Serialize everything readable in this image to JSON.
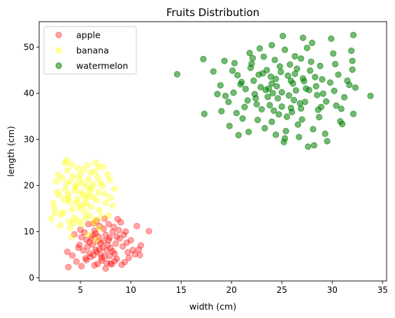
{
  "chart_data": {
    "type": "scatter",
    "title": "Fruits Distribution",
    "xlabel": "width (cm)",
    "ylabel": "length (cm)",
    "xlim": [
      0.9,
      35.4
    ],
    "ylim": [
      -0.7,
      55.5
    ],
    "xticks": [
      5,
      10,
      15,
      20,
      25,
      30,
      35
    ],
    "yticks": [
      0,
      10,
      20,
      30,
      40,
      50
    ],
    "grid": false,
    "legend_position": "upper-left",
    "series": [
      {
        "name": "apple",
        "color": "#ff0000",
        "alpha": 0.35,
        "points": [
          [
            7.0,
            7.5
          ],
          [
            6.5,
            6.0
          ],
          [
            7.8,
            8.2
          ],
          [
            6.2,
            9.1
          ],
          [
            8.4,
            5.2
          ],
          [
            5.9,
            7.7
          ],
          [
            7.1,
            4.3
          ],
          [
            9.2,
            6.8
          ],
          [
            8.8,
            10.3
          ],
          [
            6.9,
            11.2
          ],
          [
            5.4,
            9.8
          ],
          [
            4.8,
            6.5
          ],
          [
            7.6,
            3.2
          ],
          [
            8.1,
            2.9
          ],
          [
            6.0,
            4.5
          ],
          [
            10.2,
            6.0
          ],
          [
            10.6,
            11.2
          ],
          [
            11.8,
            10.1
          ],
          [
            9.0,
            12.0
          ],
          [
            8.7,
            12.7
          ],
          [
            3.8,
            2.3
          ],
          [
            5.1,
            2.5
          ],
          [
            7.5,
            2.0
          ],
          [
            9.1,
            2.8
          ],
          [
            4.2,
            4.8
          ],
          [
            3.7,
            5.6
          ],
          [
            6.7,
            3.0
          ],
          [
            7.9,
            4.7
          ],
          [
            8.6,
            4.1
          ],
          [
            10.4,
            5.1
          ],
          [
            10.8,
            6.1
          ],
          [
            9.6,
            7.6
          ],
          [
            9.3,
            9.3
          ],
          [
            8.2,
            9.9
          ],
          [
            7.3,
            10.6
          ],
          [
            6.4,
            10.2
          ],
          [
            5.8,
            11.6
          ],
          [
            6.6,
            12.3
          ],
          [
            7.4,
            12.8
          ],
          [
            5.6,
            8.2
          ],
          [
            6.1,
            8.6
          ],
          [
            6.8,
            8.9
          ],
          [
            7.2,
            6.6
          ],
          [
            7.7,
            7.1
          ],
          [
            8.0,
            6.4
          ],
          [
            8.5,
            7.4
          ],
          [
            5.3,
            5.9
          ],
          [
            5.9,
            5.3
          ],
          [
            6.3,
            4.9
          ],
          [
            6.6,
            5.6
          ],
          [
            7.0,
            5.1
          ],
          [
            7.3,
            8.0
          ],
          [
            8.9,
            8.5
          ],
          [
            9.7,
            5.5
          ],
          [
            4.9,
            7.1
          ],
          [
            5.1,
            8.8
          ],
          [
            6.2,
            7.2
          ],
          [
            6.9,
            6.3
          ],
          [
            7.5,
            9.3
          ],
          [
            8.3,
            11.0
          ],
          [
            9.5,
            10.0
          ],
          [
            10.0,
            8.1
          ],
          [
            5.6,
            3.8
          ],
          [
            4.6,
            3.5
          ],
          [
            6.4,
            2.7
          ],
          [
            8.4,
            3.6
          ],
          [
            9.8,
            4.3
          ],
          [
            10.9,
            4.9
          ],
          [
            11.0,
            7.0
          ],
          [
            4.4,
            9.4
          ],
          [
            5.0,
            10.4
          ],
          [
            6.3,
            11.8
          ],
          [
            7.8,
            11.6
          ],
          [
            8.6,
            8.9
          ],
          [
            7.6,
            5.9
          ],
          [
            6.7,
            7.9
          ],
          [
            5.7,
            6.7
          ],
          [
            8.0,
            3.1
          ],
          [
            7.1,
            3.7
          ],
          [
            9.4,
            3.4
          ],
          [
            8.2,
            5.7
          ],
          [
            6.5,
            9.6
          ],
          [
            7.4,
            4.6
          ],
          [
            5.5,
            4.2
          ],
          [
            7.9,
            8.7
          ]
        ]
      },
      {
        "name": "banana",
        "color": "#ffff00",
        "alpha": 0.35,
        "points": [
          [
            5.0,
            18.5
          ],
          [
            4.6,
            20.1
          ],
          [
            5.5,
            17.2
          ],
          [
            3.9,
            16.4
          ],
          [
            6.1,
            19.4
          ],
          [
            4.3,
            22.0
          ],
          [
            5.8,
            21.3
          ],
          [
            3.5,
            19.1
          ],
          [
            6.6,
            16.8
          ],
          [
            4.9,
            15.2
          ],
          [
            2.9,
            17.9
          ],
          [
            3.2,
            21.6
          ],
          [
            5.3,
            23.5
          ],
          [
            4.1,
            24.6
          ],
          [
            6.4,
            23.0
          ],
          [
            7.0,
            20.6
          ],
          [
            7.4,
            18.1
          ],
          [
            6.9,
            14.6
          ],
          [
            5.9,
            13.4
          ],
          [
            4.4,
            13.0
          ],
          [
            3.3,
            14.2
          ],
          [
            2.4,
            15.1
          ],
          [
            2.1,
            12.8
          ],
          [
            3.0,
            11.3
          ],
          [
            4.0,
            10.8
          ],
          [
            5.1,
            11.6
          ],
          [
            6.3,
            11.9
          ],
          [
            7.8,
            13.5
          ],
          [
            8.2,
            15.6
          ],
          [
            7.7,
            22.4
          ],
          [
            6.8,
            24.1
          ],
          [
            3.6,
            25.5
          ],
          [
            2.6,
            20.9
          ],
          [
            3.8,
            18.0
          ],
          [
            4.7,
            17.0
          ],
          [
            5.6,
            16.0
          ],
          [
            6.2,
            17.5
          ],
          [
            5.2,
            20.5
          ],
          [
            4.5,
            19.7
          ],
          [
            3.4,
            16.9
          ],
          [
            6.7,
            21.7
          ],
          [
            7.2,
            19.9
          ],
          [
            5.4,
            14.3
          ],
          [
            4.2,
            14.8
          ],
          [
            3.7,
            23.3
          ],
          [
            2.7,
            18.6
          ],
          [
            8.0,
            17.4
          ],
          [
            5.7,
            24.4
          ],
          [
            4.8,
            12.4
          ],
          [
            6.5,
            12.6
          ],
          [
            3.1,
            13.7
          ],
          [
            7.5,
            16.3
          ],
          [
            2.3,
            16.2
          ],
          [
            4.0,
            21.0
          ],
          [
            5.0,
            22.5
          ],
          [
            6.0,
            22.8
          ],
          [
            4.4,
            18.9
          ],
          [
            5.3,
            18.0
          ],
          [
            5.9,
            18.8
          ],
          [
            4.6,
            16.2
          ],
          [
            3.6,
            20.3
          ],
          [
            6.8,
            18.5
          ],
          [
            7.9,
            21.2
          ],
          [
            2.8,
            22.3
          ],
          [
            5.6,
            19.9
          ],
          [
            4.9,
            21.4
          ],
          [
            3.9,
            12.2
          ],
          [
            6.1,
            15.3
          ],
          [
            7.1,
            13.1
          ],
          [
            5.5,
            12.9
          ],
          [
            4.3,
            11.9
          ],
          [
            3.5,
            24.8
          ],
          [
            6.5,
            25.0
          ],
          [
            8.4,
            19.3
          ],
          [
            2.5,
            14.0
          ],
          [
            3.8,
            17.3
          ],
          [
            5.2,
            15.8
          ],
          [
            4.7,
            23.8
          ],
          [
            5.8,
            17.7
          ],
          [
            6.3,
            20.2
          ],
          [
            7.3,
            24.0
          ],
          [
            4.1,
            8.9
          ],
          [
            6.6,
            8.2
          ],
          [
            6.9,
            10.7
          ],
          [
            5.8,
            9.3
          ]
        ]
      },
      {
        "name": "watermelon",
        "color": "#008000",
        "alpha": 0.55,
        "points": [
          [
            25.0,
            40.2
          ],
          [
            24.0,
            42.1
          ],
          [
            26.2,
            38.5
          ],
          [
            23.1,
            44.3
          ],
          [
            27.4,
            41.0
          ],
          [
            22.5,
            37.6
          ],
          [
            25.8,
            46.2
          ],
          [
            28.3,
            43.5
          ],
          [
            21.4,
            40.9
          ],
          [
            24.7,
            35.4
          ],
          [
            26.9,
            36.7
          ],
          [
            23.6,
            39.2
          ],
          [
            29.1,
            39.9
          ],
          [
            20.6,
            43.9
          ],
          [
            27.9,
            46.8
          ],
          [
            22.1,
            47.6
          ],
          [
            25.3,
            49.4
          ],
          [
            24.4,
            31.0
          ],
          [
            26.6,
            33.2
          ],
          [
            28.7,
            34.8
          ],
          [
            30.4,
            37.3
          ],
          [
            31.7,
            41.8
          ],
          [
            19.7,
            38.1
          ],
          [
            21.1,
            34.5
          ],
          [
            23.3,
            32.4
          ],
          [
            25.2,
            29.4
          ],
          [
            27.6,
            28.4
          ],
          [
            29.5,
            29.6
          ],
          [
            31.0,
            33.3
          ],
          [
            32.1,
            35.5
          ],
          [
            33.8,
            39.4
          ],
          [
            32.0,
            45.1
          ],
          [
            30.1,
            48.6
          ],
          [
            28.0,
            50.9
          ],
          [
            25.1,
            52.4
          ],
          [
            22.8,
            49.7
          ],
          [
            20.3,
            46.5
          ],
          [
            18.9,
            41.7
          ],
          [
            17.3,
            35.5
          ],
          [
            19.0,
            36.1
          ],
          [
            14.6,
            44.1
          ],
          [
            17.2,
            47.4
          ],
          [
            26.4,
            40.6
          ],
          [
            24.1,
            40.0
          ],
          [
            27.1,
            43.2
          ],
          [
            23.8,
            37.4
          ],
          [
            25.6,
            43.8
          ],
          [
            22.9,
            41.3
          ],
          [
            28.5,
            39.6
          ],
          [
            24.6,
            38.9
          ],
          [
            26.0,
            35.9
          ],
          [
            21.9,
            45.5
          ],
          [
            27.8,
            44.9
          ],
          [
            23.0,
            36.5
          ],
          [
            25.9,
            42.7
          ],
          [
            29.8,
            42.3
          ],
          [
            20.9,
            41.9
          ],
          [
            24.9,
            44.6
          ],
          [
            26.8,
            37.8
          ],
          [
            22.3,
            39.8
          ],
          [
            28.8,
            45.9
          ],
          [
            30.6,
            44.0
          ],
          [
            31.2,
            39.1
          ],
          [
            21.6,
            38.4
          ],
          [
            19.4,
            39.4
          ],
          [
            20.1,
            44.9
          ],
          [
            18.2,
            44.7
          ],
          [
            32.0,
            47.0
          ],
          [
            31.9,
            49.2
          ],
          [
            29.9,
            51.8
          ],
          [
            27.5,
            49.8
          ],
          [
            26.3,
            48.0
          ],
          [
            24.3,
            47.2
          ],
          [
            22.0,
            46.4
          ],
          [
            23.5,
            45.0
          ],
          [
            28.1,
            32.2
          ],
          [
            26.7,
            30.5
          ],
          [
            24.0,
            33.8
          ],
          [
            22.6,
            34.2
          ],
          [
            20.5,
            35.7
          ],
          [
            19.8,
            32.9
          ],
          [
            21.7,
            31.6
          ],
          [
            25.4,
            31.8
          ],
          [
            29.3,
            31.2
          ],
          [
            30.9,
            36.6
          ],
          [
            32.3,
            41.2
          ],
          [
            27.3,
            38.1
          ],
          [
            25.7,
            39.5
          ],
          [
            23.9,
            43.6
          ],
          [
            22.2,
            42.7
          ],
          [
            24.5,
            41.5
          ],
          [
            26.1,
            42.1
          ],
          [
            28.4,
            41.5
          ],
          [
            25.0,
            37.1
          ],
          [
            27.0,
            34.3
          ],
          [
            23.4,
            40.7
          ],
          [
            21.3,
            37.0
          ],
          [
            26.5,
            45.3
          ],
          [
            28.9,
            37.0
          ],
          [
            30.2,
            40.5
          ],
          [
            24.2,
            36.2
          ],
          [
            22.7,
            44.0
          ],
          [
            25.5,
            34.9
          ],
          [
            27.2,
            42.6
          ],
          [
            29.0,
            43.0
          ],
          [
            20.2,
            40.1
          ],
          [
            18.6,
            39.8
          ],
          [
            31.5,
            42.7
          ],
          [
            26.9,
            47.5
          ],
          [
            23.2,
            47.9
          ],
          [
            24.8,
            45.8
          ],
          [
            21.0,
            42.4
          ],
          [
            22.4,
            38.9
          ],
          [
            28.6,
            36.4
          ],
          [
            25.9,
            36.8
          ],
          [
            27.7,
            40.7
          ],
          [
            24.4,
            43.1
          ],
          [
            26.3,
            44.2
          ],
          [
            23.7,
            41.0
          ],
          [
            29.4,
            38.2
          ],
          [
            30.8,
            33.9
          ],
          [
            28.2,
            28.7
          ],
          [
            25.3,
            30.2
          ],
          [
            20.7,
            30.9
          ],
          [
            19.3,
            47.0
          ],
          [
            21.8,
            48.7
          ],
          [
            24.0,
            50.4
          ],
          [
            27.1,
            52.0
          ],
          [
            32.1,
            52.6
          ],
          [
            30.3,
            46.3
          ]
        ]
      }
    ]
  }
}
